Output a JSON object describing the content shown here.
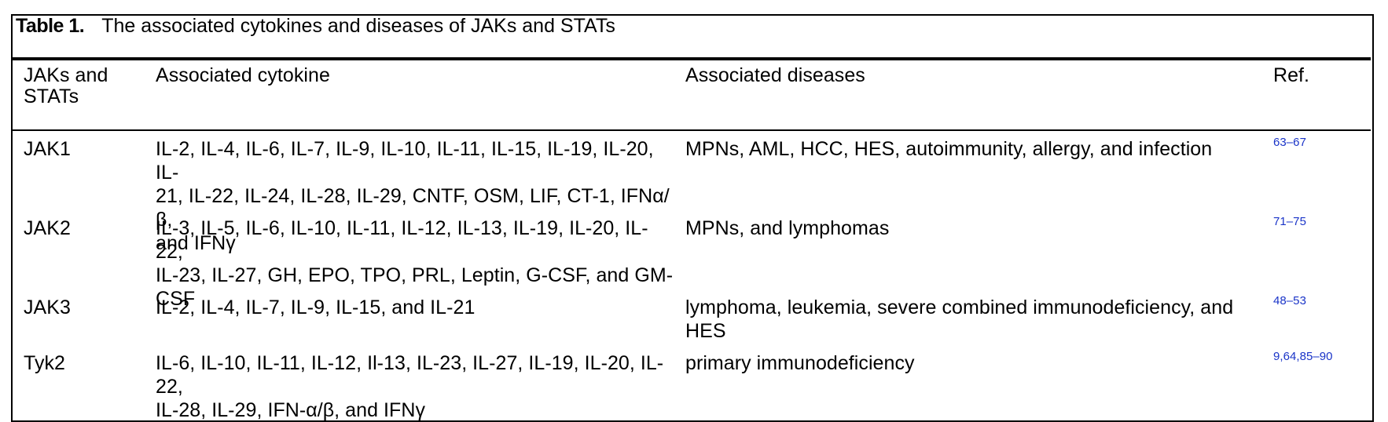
{
  "caption": {
    "label": "Table 1.",
    "title": "The associated cytokines and diseases of JAKs and STATs"
  },
  "headers": {
    "col1_line1": "JAKs and",
    "col1_line2": "STATs",
    "col2": "Associated cytokine",
    "col3": "Associated diseases",
    "col4": "Ref."
  },
  "rows": [
    {
      "name": "JAK1",
      "cytokine_lines": [
        "IL-2, IL-4, IL-6, IL-7, IL-9, IL-10, IL-11, IL-15, IL-19, IL-20, IL-",
        "21, IL-22, IL-24, IL-28, IL-29, CNTF, OSM, LIF, CT-1, IFNα/β,",
        "and IFNγ"
      ],
      "disease_lines": [
        "MPNs, AML, HCC, HES, autoimmunity, allergy, and infection"
      ],
      "ref": "63–67"
    },
    {
      "name": "JAK2",
      "cytokine_lines": [
        "IL-3, IL-5, IL-6, IL-10, IL-11, IL-12, IL-13, IL-19, IL-20, IL-22,",
        "IL-23, IL-27, GH, EPO, TPO, PRL, Leptin, G-CSF, and GM-",
        "CSF"
      ],
      "disease_lines": [
        "MPNs, and lymphomas"
      ],
      "ref": "71–75"
    },
    {
      "name": "JAK3",
      "cytokine_lines": [
        "IL-2, IL-4, IL-7, IL-9, IL-15, and IL-21"
      ],
      "disease_lines": [
        "lymphoma, leukemia, severe combined immunodeficiency, and",
        "HES"
      ],
      "ref": "48–53"
    },
    {
      "name": "Tyk2",
      "cytokine_lines": [
        "IL-6, IL-10, IL-11, IL-12, Il-13, IL-23, IL-27, IL-19, IL-20, IL-22,",
        "IL-28, IL-29, IFN-α/β, and IFNγ"
      ],
      "disease_lines": [
        "primary immunodeficiency"
      ],
      "ref": "9,64,85–90"
    }
  ],
  "colors": {
    "text": "#000000",
    "reference_link": "#1a34c8",
    "background": "#ffffff"
  }
}
